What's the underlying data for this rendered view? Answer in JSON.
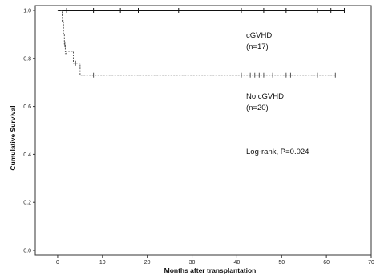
{
  "chart_data": {
    "type": "line",
    "title": "",
    "xlabel": "Months after transplantation",
    "ylabel": "Cumulative Survival",
    "xlim": [
      -5,
      70
    ],
    "ylim": [
      -0.02,
      1.02
    ],
    "x_ticks": [
      0,
      10,
      20,
      30,
      40,
      50,
      60,
      70
    ],
    "x_tick_labels": [
      "0",
      "10",
      "20",
      "30",
      "40",
      "50",
      "60",
      "70"
    ],
    "y_ticks": [
      0.0,
      0.2,
      0.4,
      0.6,
      0.8,
      1.0
    ],
    "y_tick_labels": [
      "0.0",
      "0.2",
      "0.4",
      "0.6",
      "0.8",
      "1.0"
    ],
    "grid": false,
    "series": [
      {
        "name": "cGVHD (n=17)",
        "label_line1": "cGVHD",
        "label_line2": "(n=17)",
        "style": "solid",
        "color": "#111111",
        "x": [
          0,
          64
        ],
        "y": [
          1.0,
          1.0
        ],
        "censor_x": [
          2,
          8,
          14,
          18,
          27,
          41,
          46,
          51,
          58,
          61,
          64
        ]
      },
      {
        "name": "No cGVHD (n=20)",
        "label_line1": "No cGVHD",
        "label_line2": "(n=20)",
        "style": "dashed",
        "color": "#555555",
        "x": [
          0,
          1.0,
          1.3,
          1.5,
          1.7,
          2.0,
          3.5,
          5.0,
          62
        ],
        "y": [
          1.0,
          0.95,
          0.9,
          0.86,
          0.82,
          0.83,
          0.78,
          0.73,
          0.73
        ],
        "censor_x": [
          1.2,
          1.6,
          4,
          8,
          41,
          43,
          44,
          45,
          46,
          48,
          51,
          52,
          58,
          62
        ]
      }
    ],
    "annotation": "Log-rank, P=0.024"
  }
}
